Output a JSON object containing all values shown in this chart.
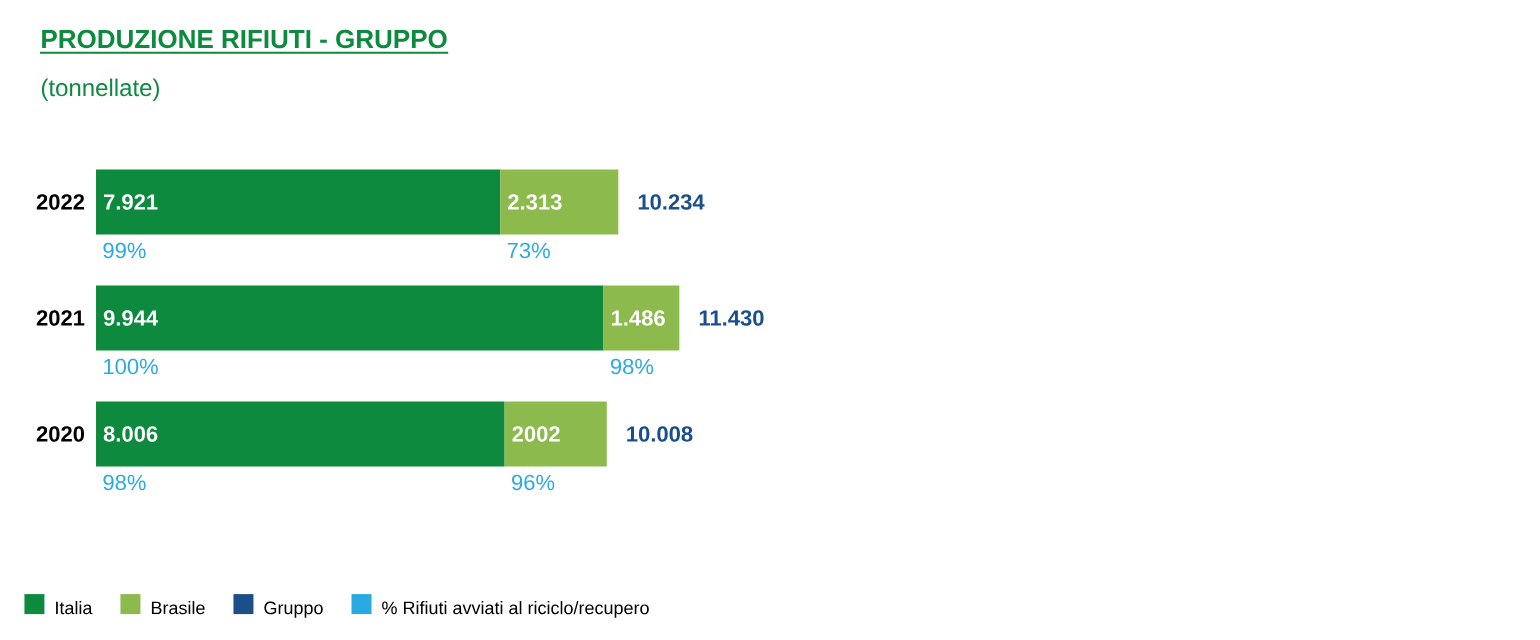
{
  "chart_data": {
    "type": "bar",
    "orientation": "horizontal",
    "stacked": true,
    "title": "PRODUZIONE RIFIUTI - GRUPPO",
    "subtitle": "(tonnellate)",
    "categories": [
      "2022",
      "2021",
      "2020"
    ],
    "series": [
      {
        "name": "Italia",
        "color": "#0e8a3f",
        "values": [
          7921,
          9944,
          8006
        ],
        "value_labels": [
          "7.921",
          "9.944",
          "8.006"
        ]
      },
      {
        "name": "Brasile",
        "color": "#8cba4c",
        "values": [
          2313,
          1486,
          2002
        ],
        "value_labels": [
          "2.313",
          "1.486",
          "2002"
        ]
      },
      {
        "name": "Gruppo",
        "color": "#1b4f8a",
        "values": [
          null,
          null,
          null
        ],
        "value_labels": [
          "10.234",
          "11.430",
          "10.008"
        ]
      },
      {
        "name": "% Rifiuti avviati al riciclo/recupero",
        "color": "#2aaae2",
        "values": [
          null,
          null,
          null
        ]
      }
    ],
    "annotations": [
      "99%",
      "73%",
      "100%",
      "98%",
      "98%",
      "96%"
    ],
    "legend": "bottom left"
  }
}
